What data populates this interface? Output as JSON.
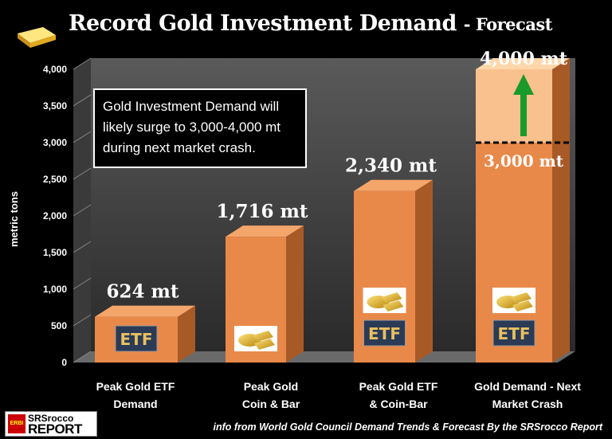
{
  "title": {
    "main": "Record Gold Investment Demand",
    "sub": "- Forecast"
  },
  "note": [
    "Gold Investment Demand will",
    "likely surge to 3,000-4,000 mt",
    "during next market crash."
  ],
  "logo": {
    "line1": "SRSrocco",
    "line2": "REPORT",
    "badge": "ERBI"
  },
  "source": "info from World Gold Council Demand Trends & Forecast By the SRSrocco Report",
  "colors": {
    "bar": "#e8894a",
    "bar_forecast": "#f9c18e",
    "arrow": "#1a9a2a",
    "wall": "#4a4a4a"
  },
  "chart_data": {
    "type": "bar",
    "title": "Record Gold Investment Demand - Forecast",
    "ylabel": "metric tons",
    "xlabel": "",
    "ylim": [
      0,
      4000
    ],
    "yticks": [
      "0",
      "500",
      "1,000",
      "1,500",
      "2,000",
      "2,500",
      "3,000",
      "3,500",
      "4,000"
    ],
    "ytick_values": [
      0,
      500,
      1000,
      1500,
      2000,
      2500,
      3000,
      3500,
      4000
    ],
    "categories": [
      [
        "Peak Gold ETF",
        "Demand"
      ],
      [
        "Peak Gold",
        "Coin & Bar"
      ],
      [
        "Peak Gold ETF",
        "& Coin-Bar"
      ],
      [
        "Gold Demand - Next",
        "Market Crash"
      ]
    ],
    "values": [
      624,
      1716,
      2340,
      3000
    ],
    "forecast_high": 4000,
    "data_labels": [
      "624 mt",
      "1,716 mt",
      "2,340 mt",
      "3,000 mt"
    ],
    "forecast_label": "4,000 mt",
    "bar_icons": [
      [
        "ETF"
      ],
      [
        "gold"
      ],
      [
        "gold",
        "ETF"
      ],
      [
        "gold",
        "ETF"
      ]
    ],
    "grid": false
  }
}
